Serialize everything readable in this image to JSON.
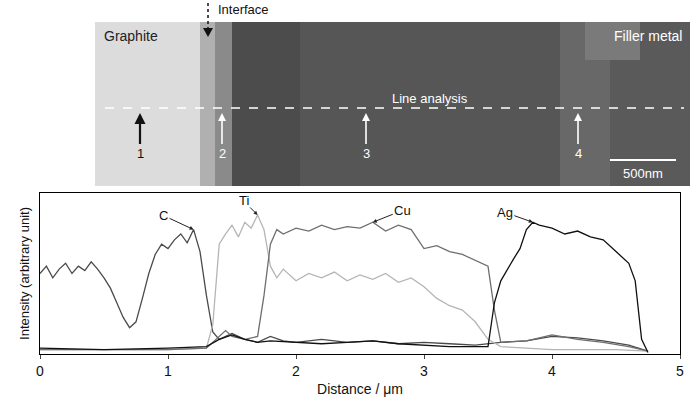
{
  "micrograph": {
    "left_label": "Graphite",
    "right_label": "Filler metal",
    "interface_label": "Interface",
    "line_label": "Line analysis",
    "point_labels": [
      "1",
      "2",
      "3",
      "4"
    ],
    "scale_bar": "500nm"
  },
  "chart_data": {
    "type": "line",
    "xlabel": "Distance / μm",
    "ylabel": "Intensity (arbitrary unit)",
    "xlim": [
      0,
      5
    ],
    "xticks": [
      0,
      1,
      2,
      3,
      4,
      5
    ],
    "ylim": [
      0,
      110
    ],
    "tick_labels": "x",
    "grid": false,
    "series": [
      {
        "name": "C",
        "color": "#4a4a4a",
        "x": [
          0,
          0.05,
          0.1,
          0.15,
          0.2,
          0.25,
          0.3,
          0.35,
          0.4,
          0.45,
          0.5,
          0.55,
          0.6,
          0.65,
          0.7,
          0.75,
          0.8,
          0.85,
          0.9,
          0.95,
          1.0,
          1.05,
          1.1,
          1.15,
          1.2,
          1.25,
          1.3,
          1.35,
          1.4,
          1.5,
          1.6,
          1.7,
          1.8,
          1.9,
          2.0,
          2.2,
          2.4,
          2.6,
          2.8,
          3.0,
          3.2,
          3.4,
          3.6,
          3.8,
          4.0,
          4.2,
          4.4,
          4.6,
          4.75
        ],
        "values": [
          55,
          60,
          52,
          58,
          62,
          55,
          60,
          57,
          63,
          58,
          52,
          45,
          35,
          25,
          18,
          22,
          38,
          55,
          68,
          75,
          72,
          78,
          82,
          76,
          85,
          70,
          40,
          15,
          10,
          14,
          10,
          8,
          12,
          9,
          8,
          10,
          8,
          9,
          7,
          8,
          7,
          6,
          8,
          9,
          12,
          11,
          9,
          6,
          2
        ]
      },
      {
        "name": "Ti",
        "color": "#b5b5b5",
        "x": [
          0,
          0.5,
          1.0,
          1.3,
          1.35,
          1.4,
          1.45,
          1.5,
          1.55,
          1.6,
          1.65,
          1.7,
          1.75,
          1.8,
          1.85,
          1.9,
          2.0,
          2.1,
          2.2,
          2.3,
          2.4,
          2.5,
          2.6,
          2.7,
          2.8,
          2.9,
          3.0,
          3.1,
          3.2,
          3.3,
          3.4,
          3.5,
          3.6,
          3.8,
          4.0,
          4.5,
          4.75
        ],
        "values": [
          3,
          3,
          3,
          4,
          20,
          75,
          82,
          88,
          80,
          90,
          86,
          95,
          85,
          60,
          52,
          58,
          50,
          55,
          52,
          56,
          50,
          54,
          51,
          55,
          49,
          52,
          46,
          38,
          33,
          30,
          22,
          10,
          5,
          4,
          3,
          3,
          2
        ]
      },
      {
        "name": "Cu",
        "color": "#6e6e6e",
        "x": [
          0,
          1.0,
          1.3,
          1.4,
          1.45,
          1.5,
          1.6,
          1.7,
          1.75,
          1.8,
          1.85,
          1.9,
          2.0,
          2.1,
          2.2,
          2.3,
          2.4,
          2.5,
          2.6,
          2.7,
          2.8,
          2.9,
          3.0,
          3.1,
          3.2,
          3.3,
          3.4,
          3.5,
          3.55,
          3.6,
          3.8,
          4.0,
          4.2,
          4.4,
          4.6,
          4.75
        ],
        "values": [
          3,
          3,
          4,
          12,
          16,
          12,
          10,
          12,
          40,
          75,
          85,
          82,
          86,
          84,
          88,
          85,
          87,
          86,
          90,
          84,
          88,
          85,
          72,
          74,
          70,
          68,
          64,
          60,
          30,
          8,
          9,
          13,
          10,
          8,
          5,
          2
        ]
      },
      {
        "name": "Ag",
        "color": "#111111",
        "x": [
          0,
          0.5,
          1.0,
          1.3,
          1.4,
          1.5,
          1.6,
          1.7,
          1.8,
          2.0,
          2.2,
          2.4,
          2.6,
          2.8,
          3.0,
          3.2,
          3.4,
          3.5,
          3.55,
          3.6,
          3.7,
          3.75,
          3.8,
          3.85,
          3.9,
          4.0,
          4.1,
          4.2,
          4.3,
          4.4,
          4.5,
          4.6,
          4.65,
          4.7,
          4.75
        ],
        "values": [
          4,
          3,
          4,
          5,
          10,
          13,
          10,
          8,
          9,
          8,
          7,
          8,
          9,
          7,
          6,
          5,
          5,
          5,
          35,
          50,
          65,
          72,
          85,
          90,
          88,
          86,
          82,
          84,
          80,
          78,
          70,
          62,
          50,
          10,
          1
        ]
      }
    ]
  }
}
